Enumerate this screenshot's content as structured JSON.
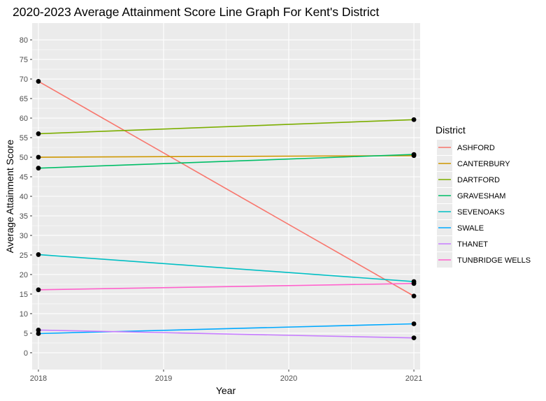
{
  "chart_data": {
    "type": "line",
    "title": "2020-2023 Average Attainment Score Line Graph For Kent's District",
    "xlabel": "Year",
    "ylabel": "Average Attainment Score",
    "x_ticks": [
      "2018",
      "2019",
      "2020",
      "2021"
    ],
    "x": [
      2018,
      2021
    ],
    "xlim": [
      2017.95,
      2021.05
    ],
    "ylim": [
      -4.3,
      84.3
    ],
    "y_ticks": [
      0,
      5,
      10,
      15,
      20,
      25,
      30,
      35,
      40,
      45,
      50,
      55,
      60,
      65,
      70,
      75,
      80
    ],
    "grid": true,
    "legend_title": "District",
    "legend_position": "right",
    "series": [
      {
        "name": "ASHFORD",
        "color": "#F8766D",
        "values": [
          69.4,
          14.5
        ]
      },
      {
        "name": "CANTERBURY",
        "color": "#CD9600",
        "values": [
          50.0,
          50.4
        ]
      },
      {
        "name": "DARTFORD",
        "color": "#7CAE00",
        "values": [
          56.0,
          59.6
        ]
      },
      {
        "name": "GRAVESHAM",
        "color": "#00BE67",
        "values": [
          47.2,
          50.7
        ]
      },
      {
        "name": "SEVENOAKS",
        "color": "#00BFC4",
        "values": [
          25.1,
          18.2
        ]
      },
      {
        "name": "SWALE",
        "color": "#00A9FF",
        "values": [
          4.9,
          7.4
        ]
      },
      {
        "name": "THANET",
        "color": "#C77CFF",
        "values": [
          5.8,
          3.8
        ]
      },
      {
        "name": "TUNBRIDGE WELLS",
        "color": "#FF61CC",
        "values": [
          16.1,
          17.7
        ]
      }
    ]
  }
}
